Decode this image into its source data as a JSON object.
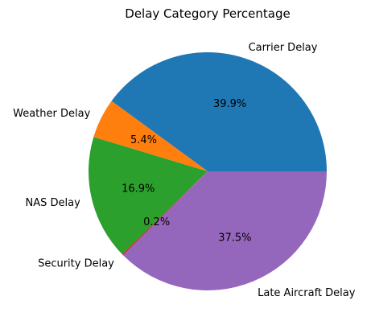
{
  "chart_data": {
    "type": "pie",
    "title": "Delay Category Percentage",
    "series": [
      {
        "name": "",
        "values": [
          39.9,
          5.4,
          16.9,
          0.2,
          37.5
        ]
      }
    ],
    "categories": [
      "Carrier Delay",
      "Weather Delay",
      "NAS Delay",
      "Security Delay",
      "Late Aircraft Delay"
    ],
    "percent_labels": [
      "39.9%",
      "5.4%",
      "16.9%",
      "0.2%",
      "37.5%"
    ],
    "colors": [
      "#1f77b4",
      "#ff7f0e",
      "#2ca02c",
      "#d62728",
      "#9467bd"
    ],
    "start_angle_deg": 0,
    "direction": "counterclockwise",
    "legend": "none"
  }
}
